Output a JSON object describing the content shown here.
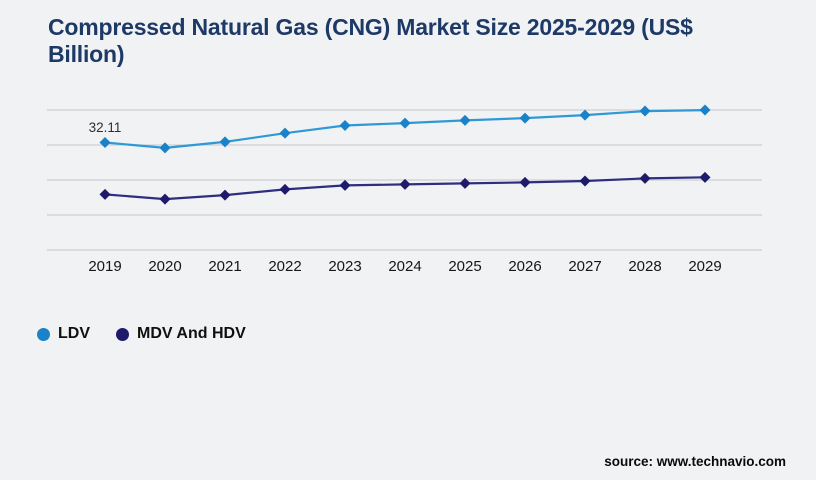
{
  "title": "Compressed Natural Gas (CNG) Market Size 2025-2029 (US$ Billion)",
  "source": "source: www.technavio.com",
  "chart_data": {
    "type": "line",
    "categories": [
      "2019",
      "2020",
      "2021",
      "2022",
      "2023",
      "2024",
      "2025",
      "2026",
      "2027",
      "2028",
      "2029"
    ],
    "series": [
      {
        "name": "LDV",
        "values": [
          32.11,
          30.5,
          32.3,
          34.9,
          37.2,
          37.9,
          38.7,
          39.4,
          40.3,
          41.5,
          41.8
        ],
        "line_color": "#2e99d6",
        "marker_color": "#1a82c8"
      },
      {
        "name": "MDV And HDV",
        "values": [
          16.6,
          15.2,
          16.4,
          18.1,
          19.3,
          19.6,
          19.9,
          20.2,
          20.6,
          21.4,
          21.7
        ],
        "line_color": "#2e2d80",
        "marker_color": "#1e1b6a"
      }
    ],
    "data_labels": [
      {
        "series": "LDV",
        "category": "2019",
        "text": "32.11"
      }
    ],
    "title": "Compressed Natural Gas (CNG) Market Size 2025-2029 (US$ Billion)",
    "xlabel": "",
    "ylabel": "",
    "ylim": [
      0,
      46
    ],
    "gridlines": 5,
    "grid": "horizontal",
    "marker_shape": "diamond",
    "legend_position": "bottom-left",
    "legend_marker": "circle"
  },
  "colors": {
    "background": "#f1f2f4",
    "title": "#1d3966",
    "gridline": "#cdced3",
    "axis_label": "#161616",
    "data_label": "#2f2f2f",
    "legend_text": "#101010",
    "source_text": "#0a0a0a"
  }
}
